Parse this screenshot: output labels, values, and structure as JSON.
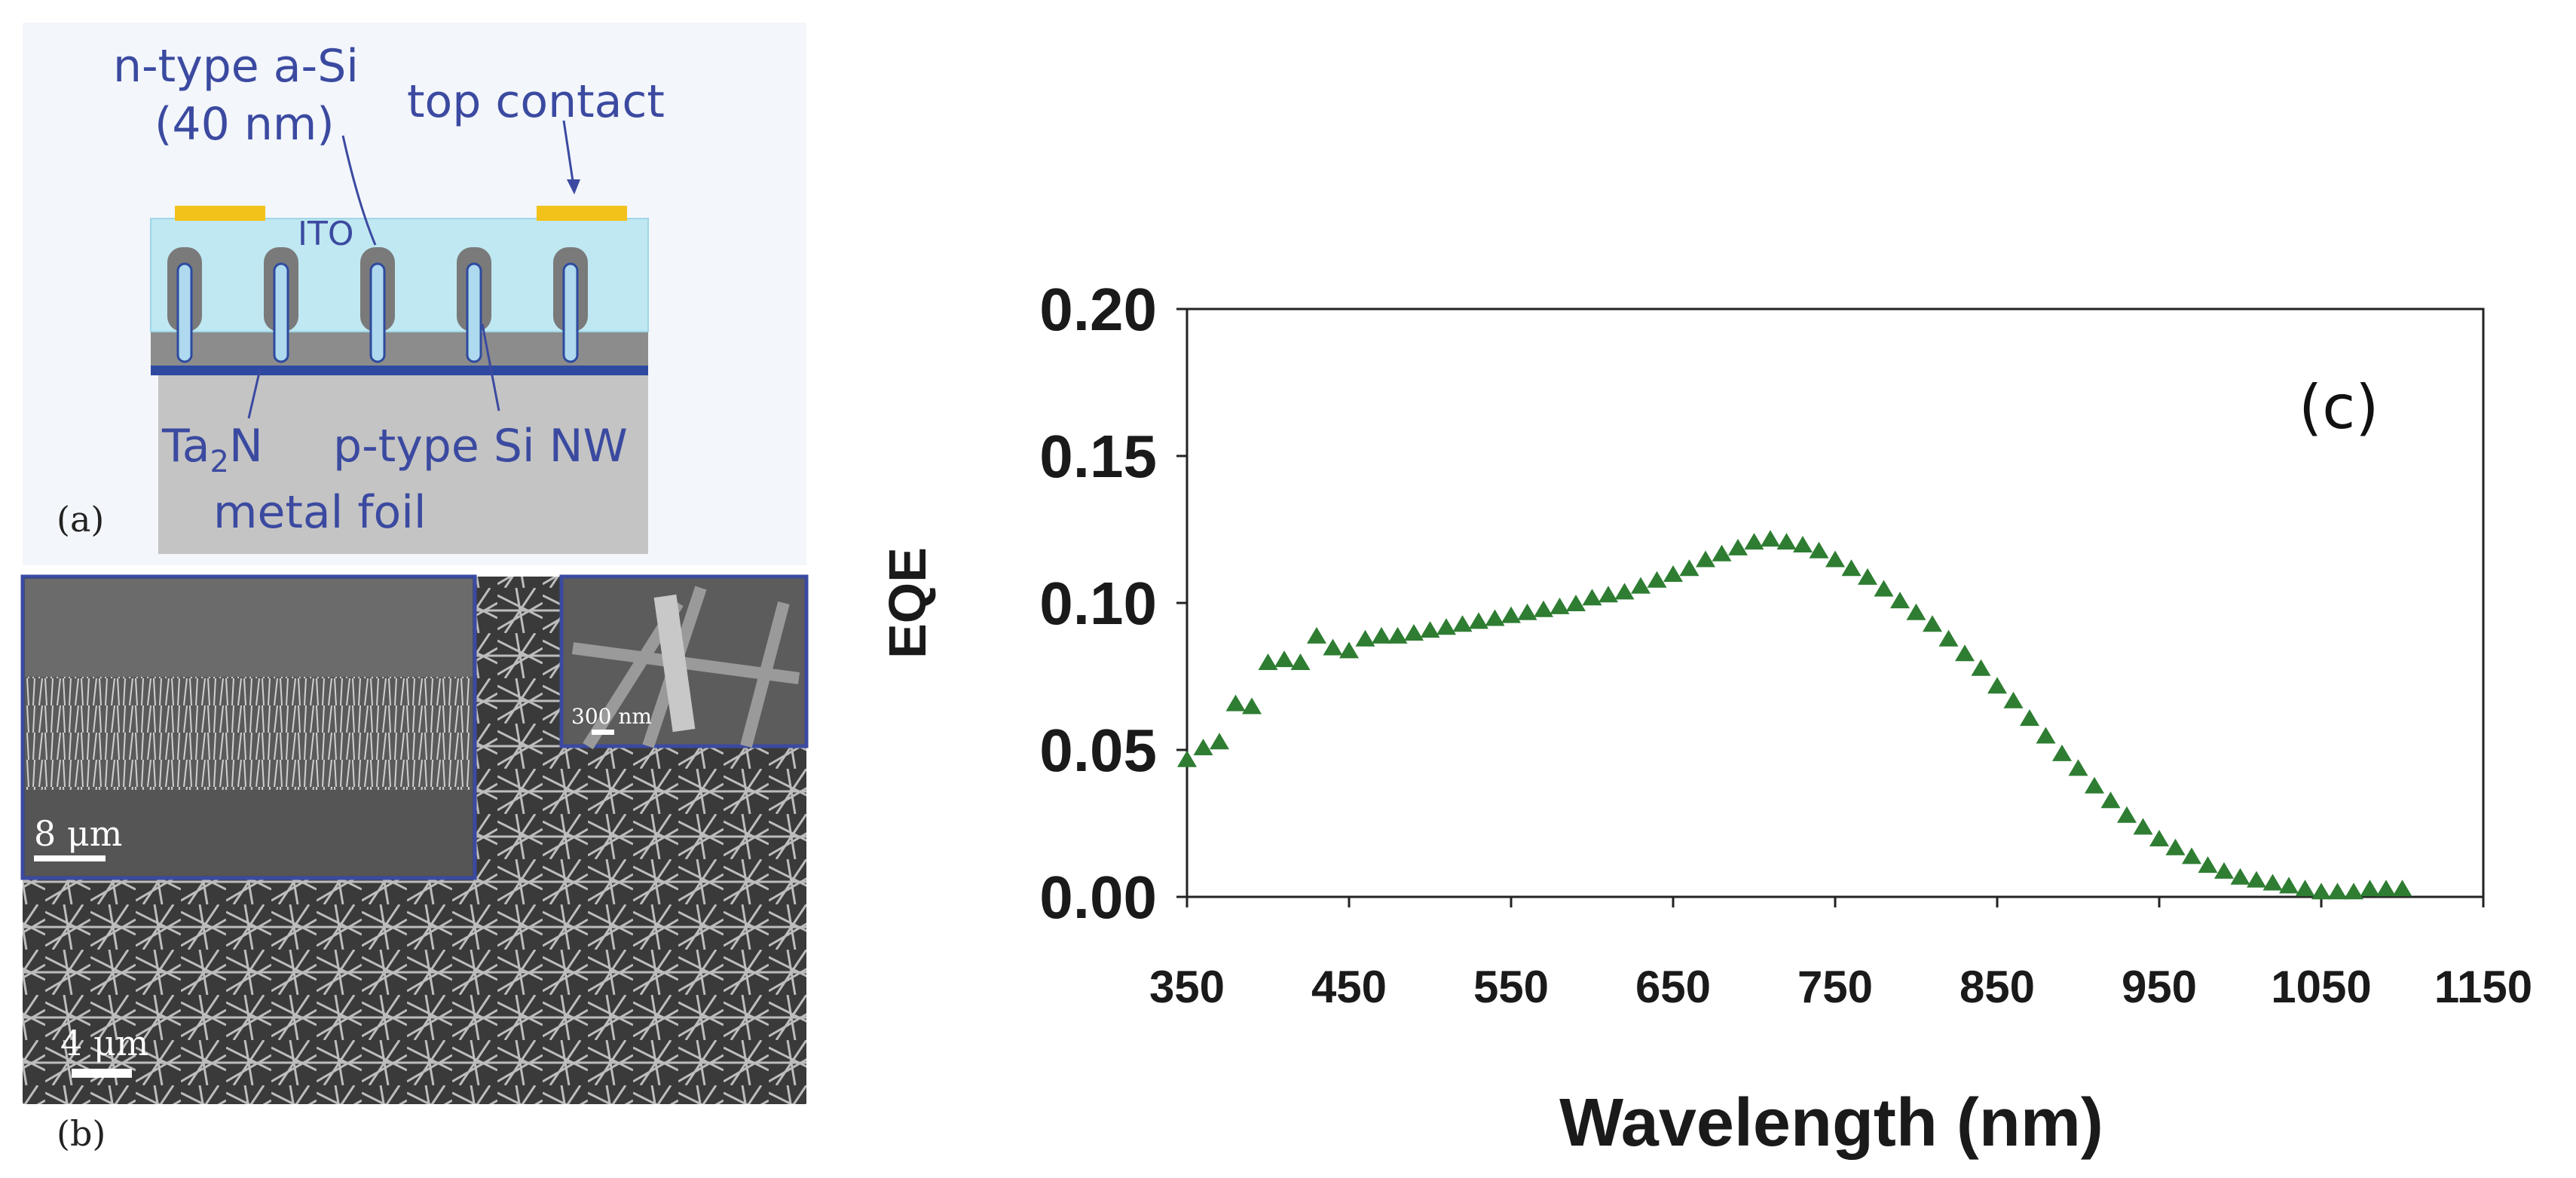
{
  "panel_a": {
    "label": "(a)",
    "n_type_line1": "n-type a-Si",
    "n_type_line2": "(40 nm)",
    "top_contact": "top contact",
    "ito": "ITO",
    "ta2n": "Ta",
    "ta2n_sub": "2",
    "ta2n_tail": "N",
    "p_type": "p-type Si NW",
    "metal_foil": "metal foil"
  },
  "panel_b": {
    "label": "(b)",
    "scale_main": "4 μm",
    "scale_inset_left": "8 μm",
    "scale_inset_right": "300 nm"
  },
  "chart_data": {
    "type": "scatter",
    "panel_label": "(c)",
    "xlabel": "Wavelength (nm)",
    "ylabel": "EQE",
    "xlim": [
      350,
      1150
    ],
    "ylim": [
      0,
      0.2
    ],
    "x_ticks": [
      350,
      450,
      550,
      650,
      750,
      850,
      950,
      1050,
      1150
    ],
    "y_ticks": [
      "0.00",
      "0.05",
      "0.10",
      "0.15",
      "0.20"
    ],
    "marker": "triangle",
    "marker_color": "#2e7d32",
    "series": [
      {
        "name": "EQE",
        "x": [
          350,
          360,
          370,
          380,
          390,
          400,
          410,
          420,
          430,
          440,
          450,
          460,
          470,
          480,
          490,
          500,
          510,
          520,
          530,
          540,
          550,
          560,
          570,
          580,
          590,
          600,
          610,
          620,
          630,
          640,
          650,
          660,
          670,
          680,
          690,
          700,
          710,
          720,
          730,
          740,
          750,
          760,
          770,
          780,
          790,
          800,
          810,
          820,
          830,
          840,
          850,
          860,
          870,
          880,
          890,
          900,
          910,
          920,
          930,
          940,
          950,
          960,
          970,
          980,
          990,
          1000,
          1010,
          1020,
          1030,
          1040,
          1050,
          1060,
          1070,
          1080,
          1090,
          1100
        ],
        "y": [
          0.047,
          0.051,
          0.053,
          0.066,
          0.065,
          0.08,
          0.081,
          0.08,
          0.089,
          0.085,
          0.084,
          0.088,
          0.089,
          0.089,
          0.09,
          0.091,
          0.092,
          0.093,
          0.094,
          0.095,
          0.096,
          0.097,
          0.098,
          0.099,
          0.1,
          0.102,
          0.103,
          0.104,
          0.106,
          0.108,
          0.11,
          0.112,
          0.115,
          0.117,
          0.119,
          0.121,
          0.122,
          0.121,
          0.12,
          0.118,
          0.115,
          0.112,
          0.109,
          0.105,
          0.101,
          0.097,
          0.093,
          0.088,
          0.083,
          0.078,
          0.072,
          0.067,
          0.061,
          0.055,
          0.049,
          0.044,
          0.038,
          0.033,
          0.028,
          0.024,
          0.02,
          0.017,
          0.014,
          0.011,
          0.009,
          0.007,
          0.006,
          0.005,
          0.004,
          0.003,
          0.002,
          0.002,
          0.002,
          0.003,
          0.003,
          0.003
        ]
      }
    ]
  }
}
